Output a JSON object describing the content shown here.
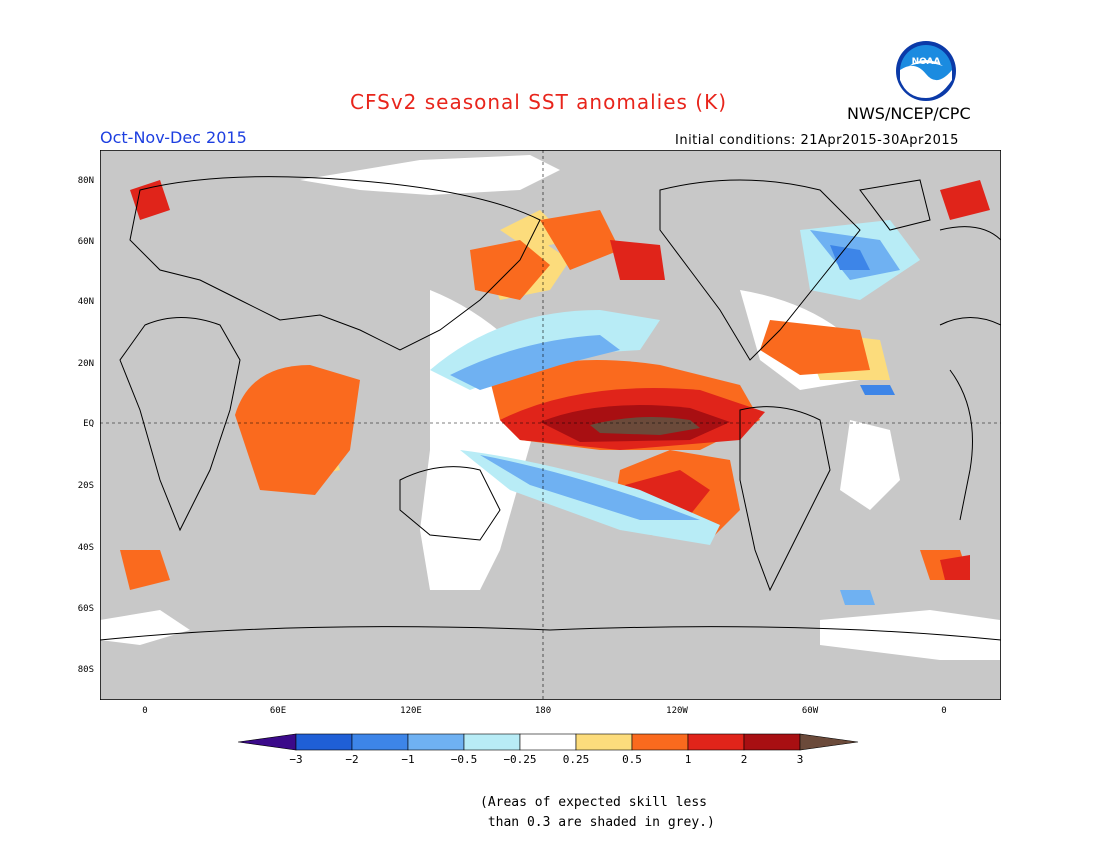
{
  "header": {
    "title": "CFSv2 seasonal SST anomalies (K)",
    "agency": "NWS/NCEP/CPC",
    "period": "Oct-Nov-Dec 2015",
    "initial_conditions": "Initial conditions: 21Apr2015-30Apr2015"
  },
  "logo": {
    "text": "NOAA"
  },
  "axes": {
    "y_ticks": [
      "80N",
      "60N",
      "40N",
      "20N",
      "EQ",
      "20S",
      "40S",
      "60S",
      "80S"
    ],
    "x_ticks": [
      "0",
      "60E",
      "120E",
      "180",
      "120W",
      "60W",
      "0"
    ]
  },
  "colorbar": {
    "labels": [
      "-3",
      "-2",
      "-1",
      "-0.5",
      "-0.25",
      "0.25",
      "0.5",
      "1",
      "2",
      "3"
    ],
    "colors": [
      "#3b0a8a",
      "#1f5fd6",
      "#3d85e8",
      "#6fb1f2",
      "#b8ecf6",
      "#ffffff",
      "#fcdc7c",
      "#fa6a1e",
      "#e0241a",
      "#a80f12",
      "#6b4a3a"
    ]
  },
  "colors": {
    "land_grey": "#c8c8c8",
    "no_skill_grey": "#c8c8c8"
  },
  "note": {
    "line1": "(Areas of expected skill less",
    "line2": " than 0.3 are shaded in grey.)"
  }
}
